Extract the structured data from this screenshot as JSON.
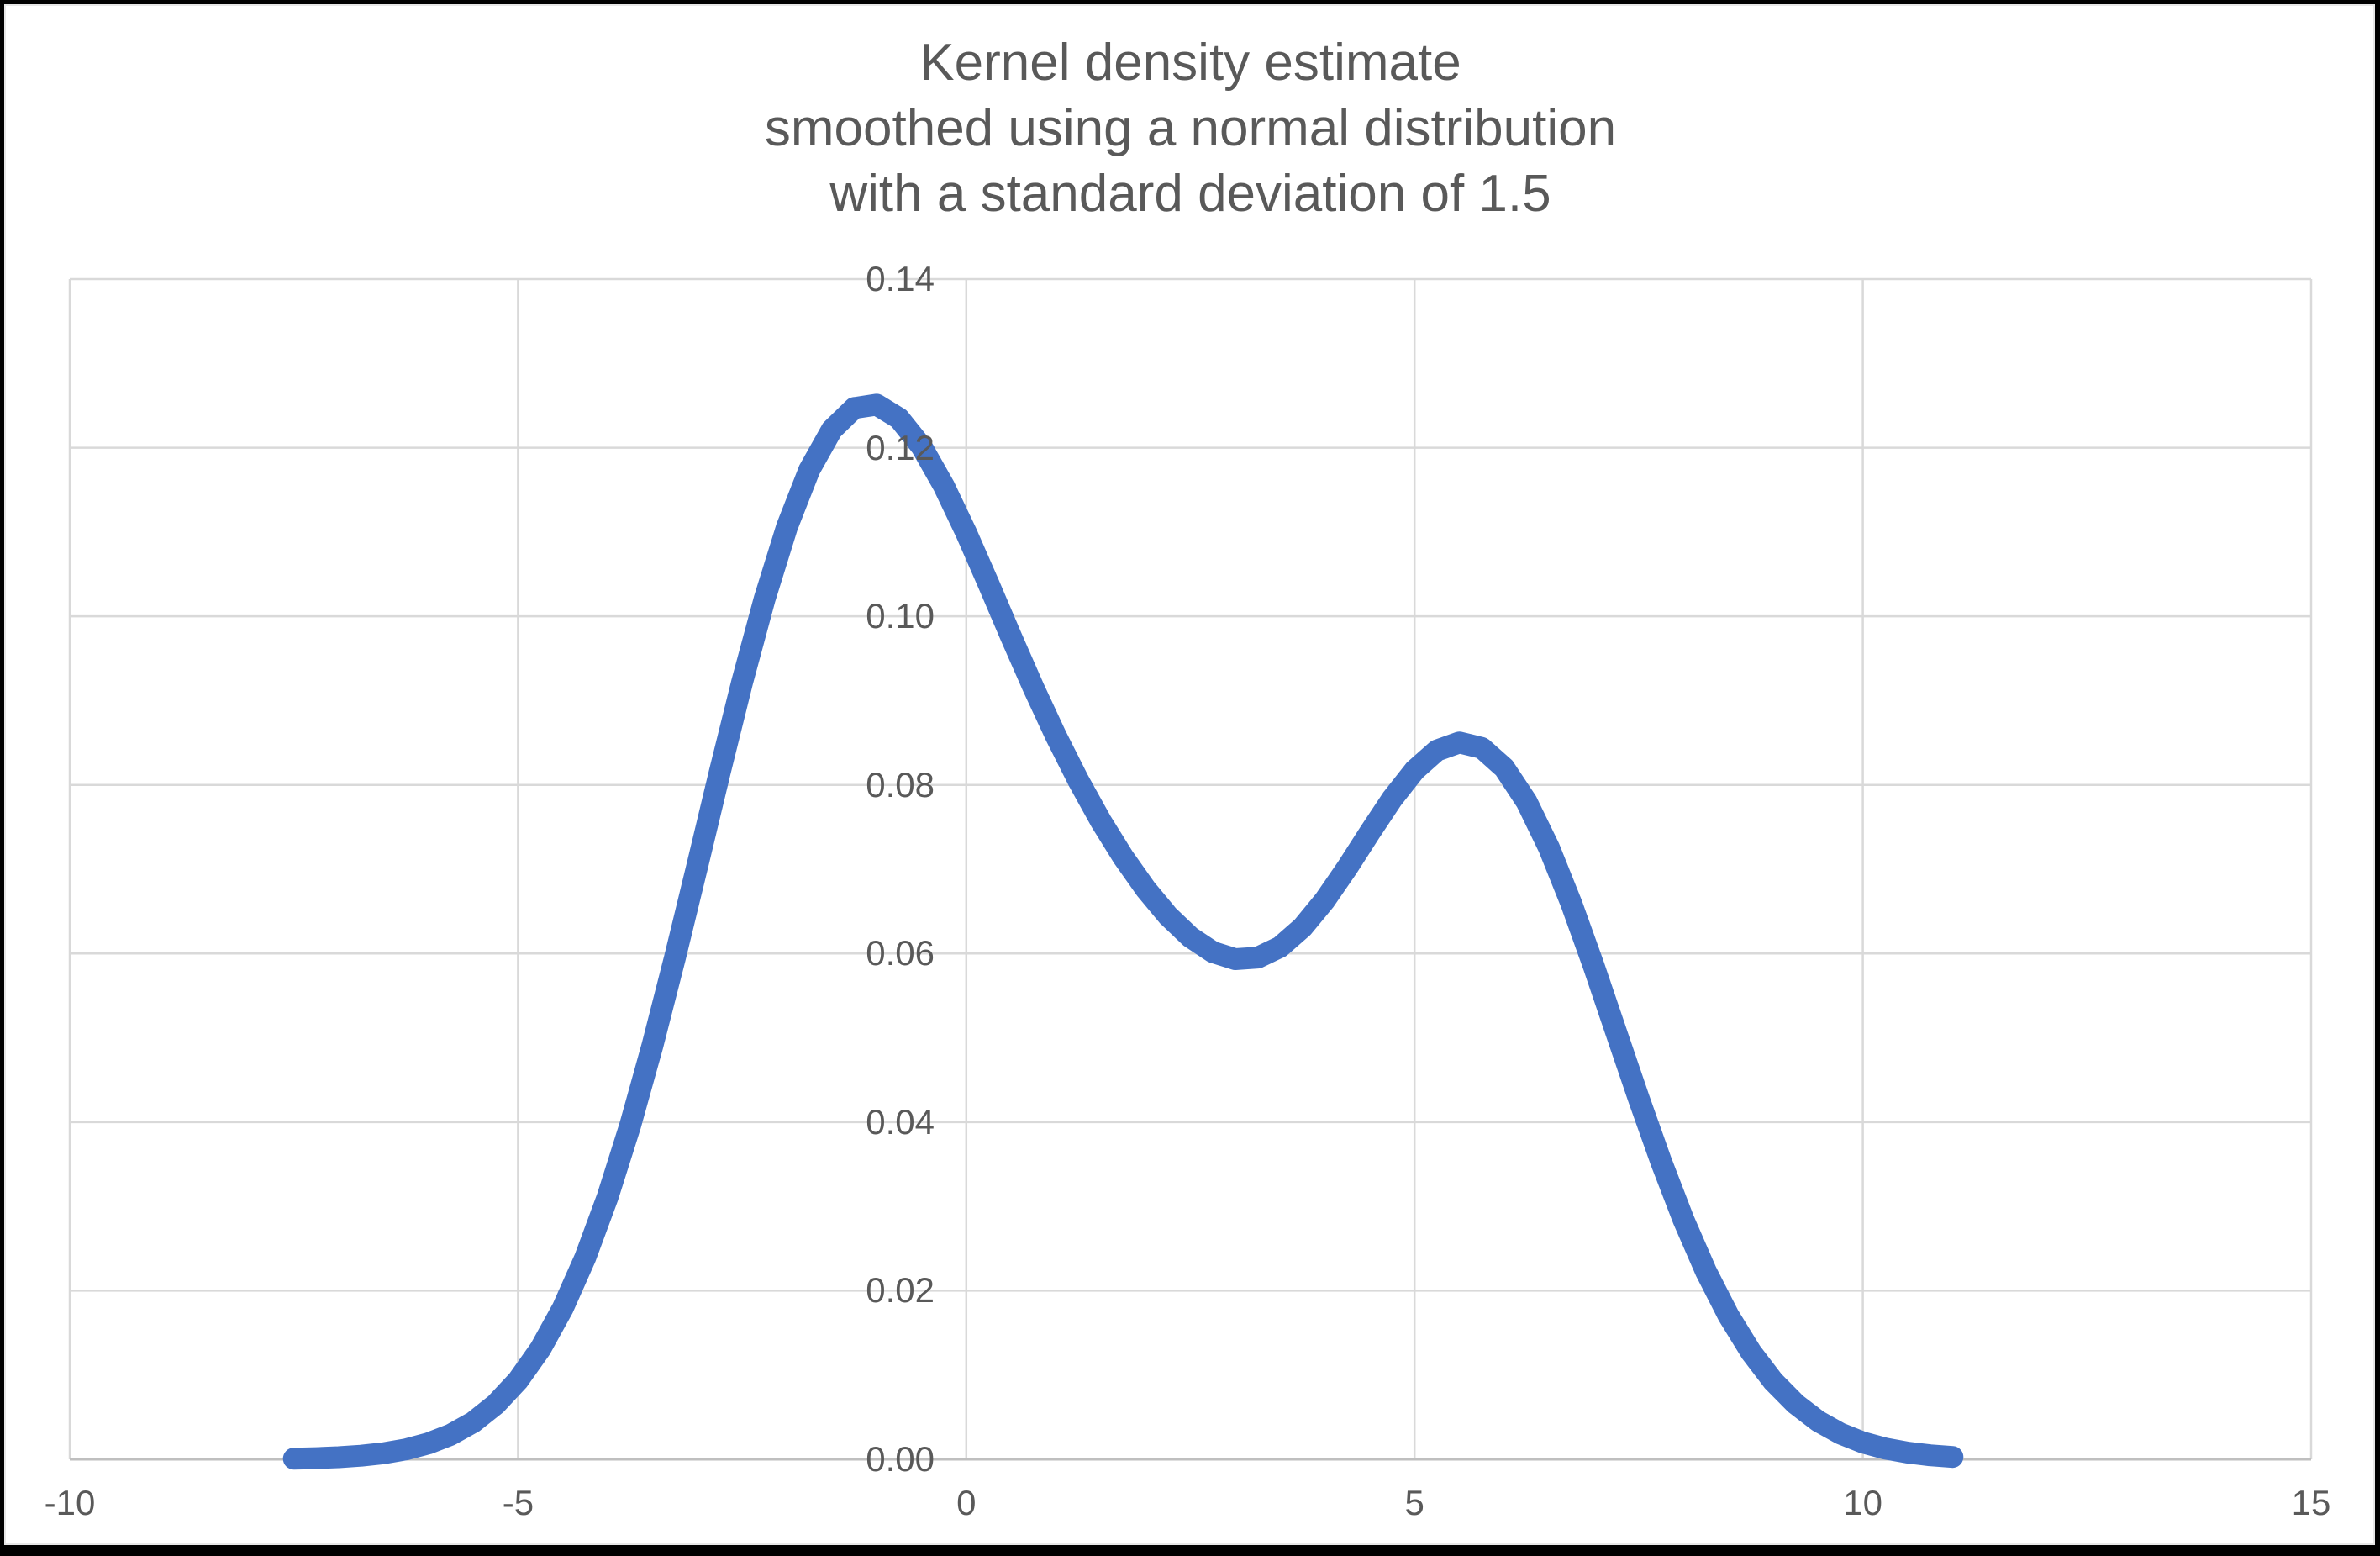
{
  "window": {
    "background": "#FFFFFF",
    "frame_color": "#000000"
  },
  "chart_data": {
    "type": "line",
    "title_lines": [
      "Kernel density estimate",
      "smoothed using a normal distribution",
      "with a standard deviation of 1.5"
    ],
    "xlabel": "",
    "ylabel": "",
    "xlim": [
      -10,
      15
    ],
    "ylim": [
      0,
      0.14
    ],
    "grid": true,
    "legend_position": "none",
    "x_ticks": [
      {
        "value": -10,
        "label": "-10"
      },
      {
        "value": -5,
        "label": "-5"
      },
      {
        "value": 0,
        "label": "0"
      },
      {
        "value": 5,
        "label": "5"
      },
      {
        "value": 10,
        "label": "10"
      },
      {
        "value": 15,
        "label": "15"
      }
    ],
    "y_ticks": [
      {
        "value": 0.0,
        "label": "0.00"
      },
      {
        "value": 0.02,
        "label": "0.02"
      },
      {
        "value": 0.04,
        "label": "0.04"
      },
      {
        "value": 0.06,
        "label": "0.06"
      },
      {
        "value": 0.08,
        "label": "0.08"
      },
      {
        "value": 0.1,
        "label": "0.10"
      },
      {
        "value": 0.12,
        "label": "0.12"
      },
      {
        "value": 0.14,
        "label": "0.14"
      }
    ],
    "colors": {
      "series": "#4472C4",
      "gridline": "#D9D9D9",
      "axis_line": "#BFBFBF",
      "tick_text": "#595959",
      "title_text": "#595959"
    },
    "series": [
      {
        "name": "Kernel density estimate",
        "color": "#4472C4",
        "stroke_width": 26,
        "x_start": -7.5,
        "x_step": 0.25,
        "y": [
          8e-05,
          0.00014,
          0.00025,
          0.00043,
          0.00072,
          0.00118,
          0.00188,
          0.00292,
          0.00441,
          0.00651,
          0.00936,
          0.01312,
          0.01794,
          0.02393,
          0.03115,
          0.03958,
          0.0491,
          0.0595,
          0.07043,
          0.08149,
          0.0922,
          0.10206,
          0.11059,
          0.11738,
          0.12213,
          0.1247,
          0.1251,
          0.12348,
          0.12015,
          0.11547,
          0.10989,
          0.1038,
          0.09758,
          0.09152,
          0.08579,
          0.08051,
          0.07572,
          0.07144,
          0.06767,
          0.06448,
          0.06194,
          0.06017,
          0.05933,
          0.05951,
          0.06078,
          0.06311,
          0.06633,
          0.0702,
          0.07435,
          0.07835,
          0.08173,
          0.08409,
          0.08504,
          0.08439,
          0.08202,
          0.07801,
          0.07253,
          0.06589,
          0.05846,
          0.05064,
          0.04282,
          0.03532,
          0.02843,
          0.02231,
          0.01708,
          0.01275,
          0.00927,
          0.00658,
          0.00454,
          0.00306,
          0.002,
          0.00128,
          0.0008,
          0.00048,
          0.00028
        ]
      }
    ]
  }
}
